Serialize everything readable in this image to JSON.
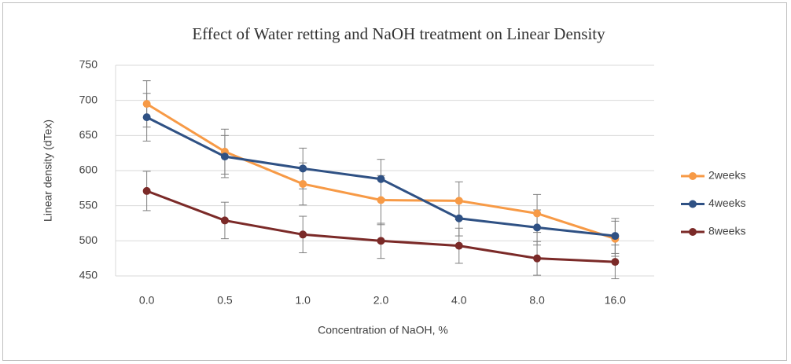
{
  "chart_data": {
    "type": "line",
    "title": "Effect of  Water retting and NaOH treatment on Linear Density",
    "x_label": "Concentration of NaOH, %",
    "y_label": "Linear density (dTex)",
    "categories": [
      "0.0",
      "0.5",
      "1.0",
      "2.0",
      "4.0",
      "8.0",
      "16.0"
    ],
    "series": [
      {
        "name": "2weeks",
        "color": "#f79a46",
        "values": [
          695,
          627,
          581,
          558,
          557,
          539,
          503
        ],
        "errors": [
          33,
          32,
          30,
          35,
          27,
          27,
          25
        ]
      },
      {
        "name": "4weeks",
        "color": "#2f5184",
        "values": [
          676,
          620,
          603,
          588,
          532,
          519,
          507
        ],
        "errors": [
          34,
          30,
          29,
          28,
          25,
          25,
          25
        ]
      },
      {
        "name": "8weeks",
        "color": "#7b2a28",
        "values": [
          571,
          529,
          509,
          500,
          493,
          475,
          470
        ],
        "errors": [
          28,
          26,
          26,
          25,
          25,
          24,
          24
        ]
      }
    ],
    "ylim": [
      450,
      750
    ],
    "yticks": [
      450,
      500,
      550,
      600,
      650,
      700,
      750
    ],
    "grid": true,
    "legend": "right"
  }
}
